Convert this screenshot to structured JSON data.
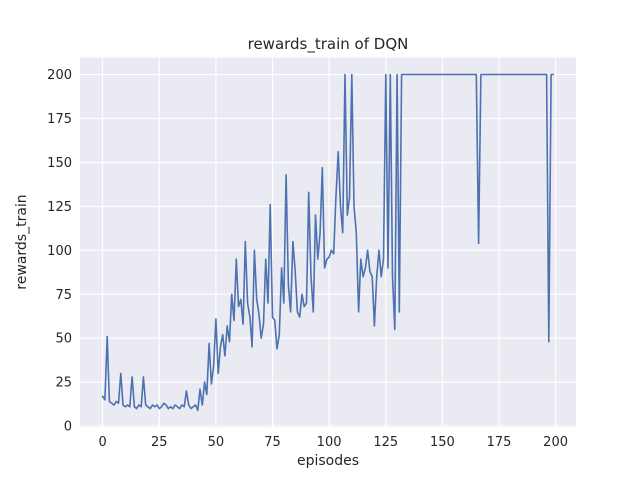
{
  "chart_data": {
    "type": "line",
    "title": "rewards_train of DQN",
    "xlabel": "episodes",
    "ylabel": "rewards_train",
    "xlim": [
      -10,
      209
    ],
    "ylim": [
      -0.6,
      209.6
    ],
    "xticks": [
      0,
      25,
      50,
      75,
      100,
      125,
      150,
      175,
      200
    ],
    "yticks": [
      0,
      25,
      50,
      75,
      100,
      125,
      150,
      175,
      200
    ],
    "grid": true,
    "legend": "none",
    "colors": {
      "line": "#4c72b0",
      "plot_background": "#eaeaf2",
      "grid": "#ffffff",
      "text": "#262626",
      "figure_background": "#ffffff"
    },
    "series": [
      {
        "name": "rewards_train",
        "x_start": 0,
        "x_step": 1,
        "values": [
          17,
          15,
          51,
          14,
          13,
          12,
          14,
          13,
          30,
          12,
          11,
          12,
          11,
          28,
          11,
          10,
          12,
          11,
          28,
          12,
          11,
          10,
          12,
          11,
          12,
          10,
          11,
          13,
          12,
          10,
          11,
          10,
          12,
          11,
          10,
          12,
          11,
          20,
          12,
          10,
          11,
          12,
          9,
          21,
          12,
          25,
          18,
          47,
          24,
          34,
          61,
          30,
          45,
          52,
          40,
          57,
          48,
          75,
          60,
          95,
          68,
          72,
          58,
          105,
          70,
          62,
          45,
          100,
          72,
          64,
          50,
          58,
          95,
          70,
          126,
          62,
          60,
          44,
          52,
          90,
          70,
          143,
          80,
          65,
          105,
          88,
          65,
          62,
          75,
          68,
          70,
          133,
          85,
          65,
          120,
          95,
          110,
          147,
          90,
          95,
          96,
          100,
          98,
          130,
          156,
          125,
          110,
          200,
          120,
          130,
          200,
          125,
          110,
          65,
          95,
          85,
          90,
          100,
          88,
          85,
          57,
          85,
          100,
          85,
          95,
          200,
          90,
          200,
          85,
          55,
          200,
          65,
          200,
          200,
          200,
          200,
          200,
          200,
          200,
          200,
          200,
          200,
          200,
          200,
          200,
          200,
          200,
          200,
          200,
          200,
          200,
          200,
          200,
          200,
          200,
          200,
          200,
          200,
          200,
          200,
          200,
          200,
          200,
          200,
          200,
          200,
          104,
          200,
          200,
          200,
          200,
          200,
          200,
          200,
          200,
          200,
          200,
          200,
          200,
          200,
          200,
          200,
          200,
          200,
          200,
          200,
          200,
          200,
          200,
          200,
          200,
          200,
          200,
          200,
          200,
          200,
          200,
          48,
          200,
          200
        ]
      }
    ]
  }
}
